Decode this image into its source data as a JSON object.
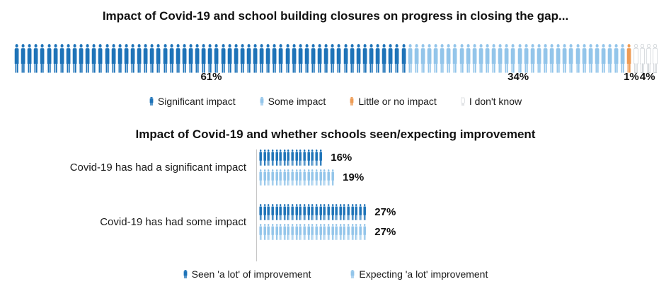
{
  "chart_data": [
    {
      "type": "pictogram",
      "title": "Impact of Covid-19 and school building closures on progress in closing the gap...",
      "icon": "person",
      "pct_per_icon": 1,
      "categories": [
        "Significant impact",
        "Some impact",
        "Little or no impact",
        "I don't know"
      ],
      "values": [
        61,
        34,
        1,
        4
      ],
      "labels": [
        "61%",
        "34%",
        "1%",
        "4%"
      ],
      "colors": [
        "#1E73B8",
        "#93C5EA",
        "#EE9C55",
        "#FFFFFF"
      ],
      "outline_stroke": "#CBD0D4",
      "xlim": [
        0,
        100
      ],
      "legend_position": "bottom"
    },
    {
      "type": "pictogram-grouped",
      "title": "Impact of Covid-19 and whether schools seen/expecting improvement",
      "icon": "person",
      "pct_per_icon": 1,
      "categories": [
        "Covid-19 has had a significant impact",
        "Covid-19 has had some impact"
      ],
      "series": [
        {
          "name": "Seen 'a lot' of improvement",
          "color": "#1E73B8",
          "values": [
            16,
            27
          ],
          "labels": [
            "16%",
            "27%"
          ]
        },
        {
          "name": "Expecting 'a lot' improvement",
          "color": "#93C5EA",
          "values": [
            19,
            27
          ],
          "labels": [
            "19%",
            "27%"
          ]
        }
      ],
      "axis_color": "#C6C6C6",
      "legend_position": "bottom"
    }
  ]
}
